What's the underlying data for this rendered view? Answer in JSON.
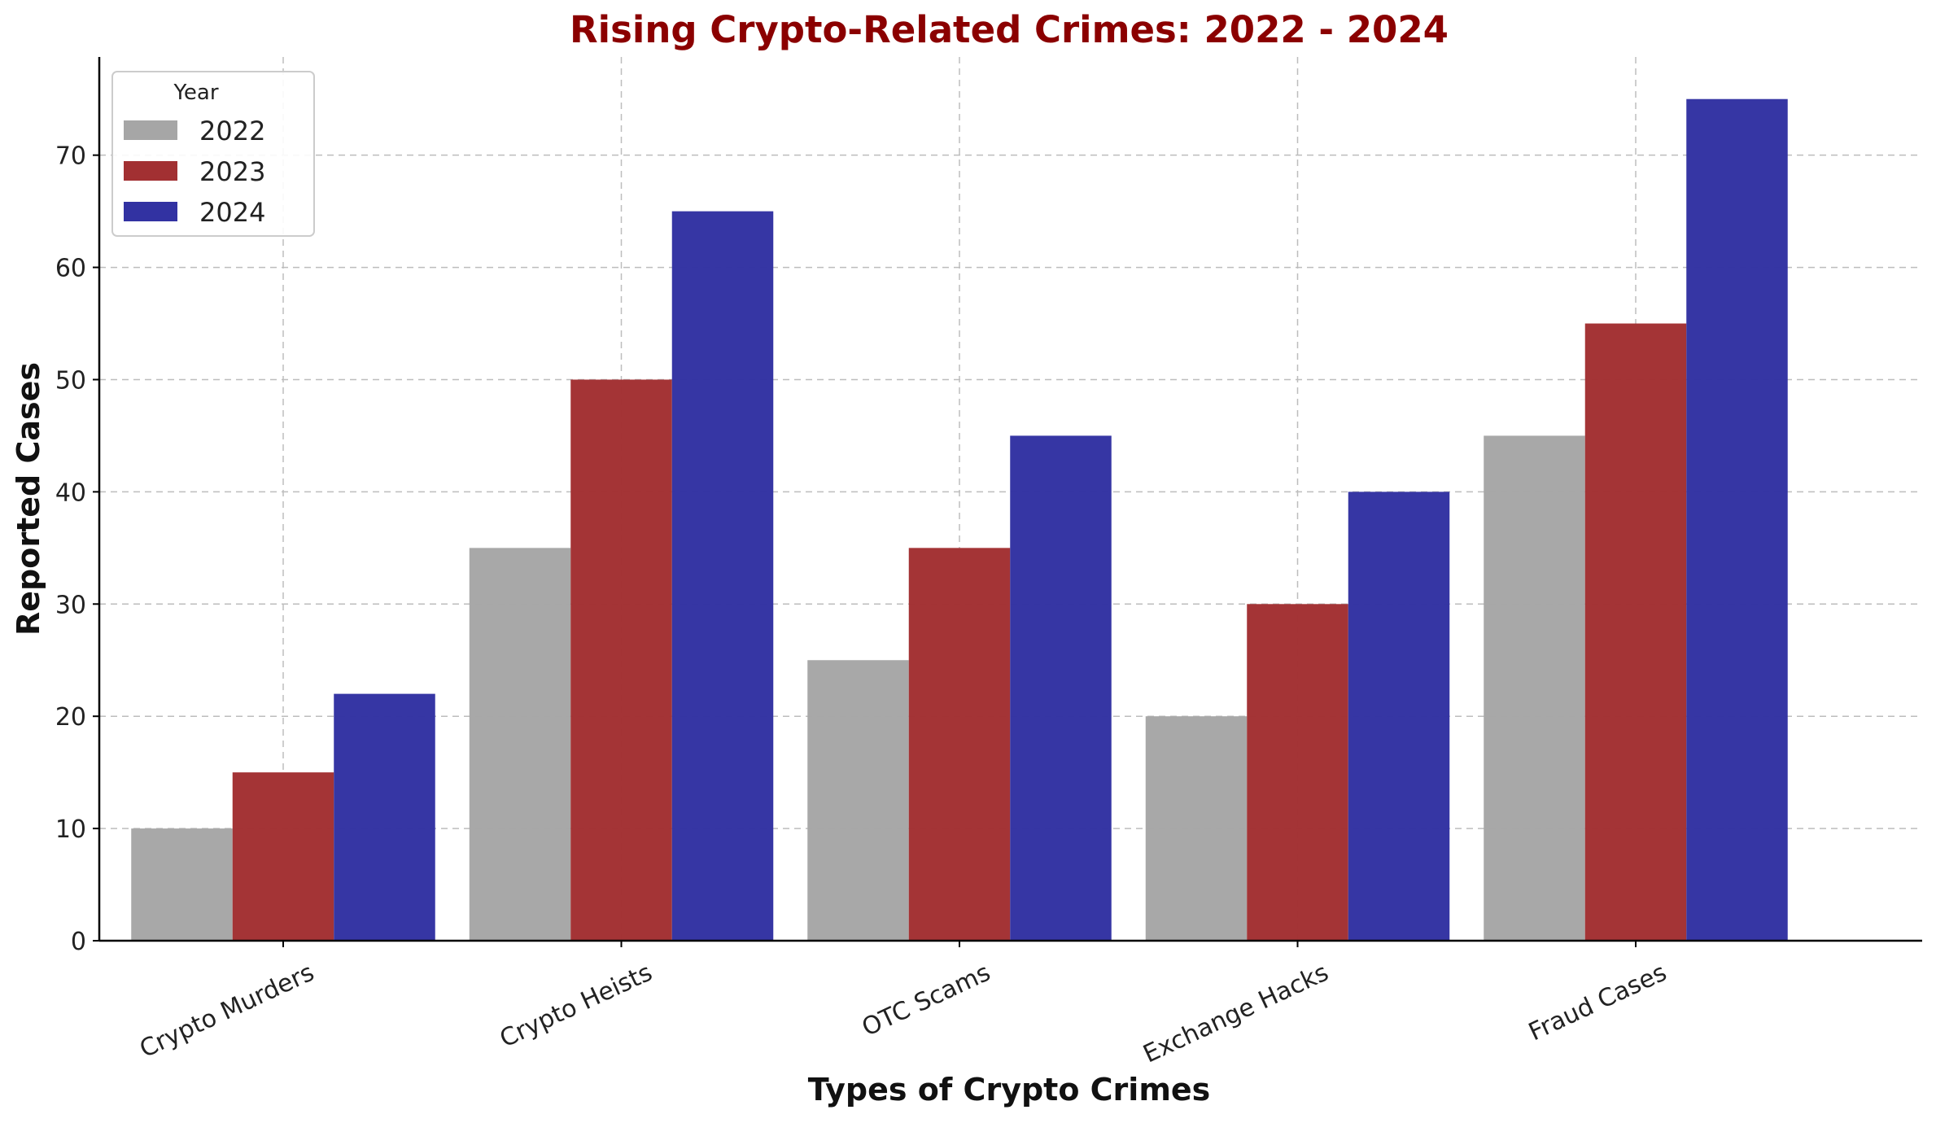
{
  "chart_data": {
    "type": "bar",
    "title": "Rising Crypto-Related Crimes: 2022 - 2024",
    "xlabel": "Types of Crypto Crimes",
    "ylabel": "Reported Cases",
    "categories": [
      "Crypto Murders",
      "Crypto Heists",
      "OTC Scams",
      "Exchange Hacks",
      "Fraud Cases"
    ],
    "series": [
      {
        "name": "2022",
        "color": "#a6a6a6",
        "values": [
          10,
          35,
          25,
          20,
          45
        ]
      },
      {
        "name": "2023",
        "color": "#a23032",
        "values": [
          15,
          50,
          35,
          30,
          55
        ]
      },
      {
        "name": "2024",
        "color": "#3232a2",
        "values": [
          22,
          65,
          45,
          40,
          75
        ]
      }
    ],
    "ylim": [
      0,
      78.75
    ],
    "yticks": [
      0,
      10,
      20,
      30,
      40,
      50,
      60,
      70
    ],
    "grid": true,
    "legend": {
      "title": "Year",
      "position": "top-left"
    },
    "title_color": "#8b0000"
  }
}
